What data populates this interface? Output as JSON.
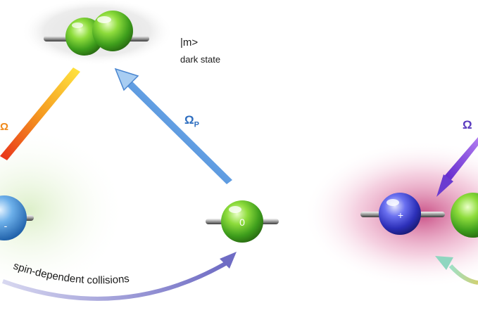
{
  "labels": {
    "m_state": "|m>",
    "dark_state": "dark state",
    "omega_p": "Ω",
    "omega_p_sub": "P",
    "omega_right": "Ω",
    "omega_left": "Ω",
    "collisions": "spin-dependent collisions"
  },
  "atoms": {
    "center_bottom": "0",
    "right_left": "+",
    "left_edge": "-"
  },
  "colors": {
    "green_atom": "#5cc83a",
    "blue_atom": "#4a55d8",
    "probe_beam": "#3d7fd6",
    "pump_beam_left": "#f28a1e",
    "beam_right": "#6a3bd0",
    "magenta_glow": "#c0206a",
    "collision_arrow": "#7a78c8"
  },
  "icons": {
    "atom": "sphere-icon",
    "beam": "arrow-icon"
  }
}
